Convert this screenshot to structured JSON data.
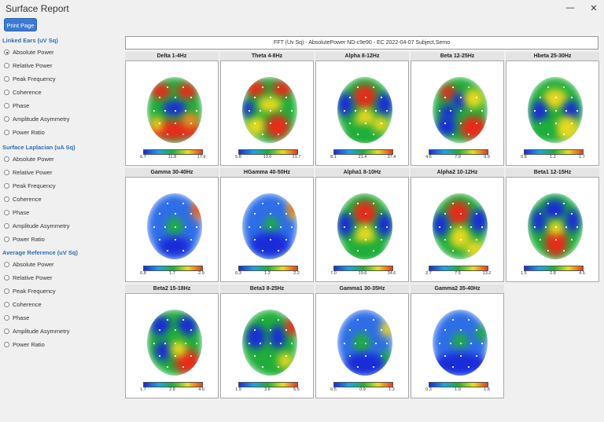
{
  "window": {
    "title": "Surface Report",
    "minimize": "—",
    "close": "✕"
  },
  "toolbar": {
    "print_label": "Print Page"
  },
  "sections": [
    {
      "title": "Linked Ears (uV Sq)",
      "options": [
        "Absolute Power",
        "Relative Power",
        "Peak Frequency",
        "Coherence",
        "Phase",
        "Amplitude Asymmetry",
        "Power Ratio"
      ],
      "selected": 0
    },
    {
      "title": "Surface Laplacian (uA Sq)",
      "options": [
        "Absolute Power",
        "Relative Power",
        "Peak Frequency",
        "Coherence",
        "Phase",
        "Amplitude Asymmetry",
        "Power Ratio"
      ],
      "selected": -1
    },
    {
      "title": "Average Reference (uV Sq)",
      "options": [
        "Absolute Power",
        "Relative Power",
        "Peak Frequency",
        "Coherence",
        "Phase",
        "Amplitude Asymmetry",
        "Power Ratio"
      ],
      "selected": -1
    }
  ],
  "header": "FFT (Uv Sq) - AbsolutePower  ND-c9e90  - EC  2022-04-07  Subject,Semo",
  "panels": [
    {
      "title": "Delta 1-4Hz",
      "scale": [
        "6.7",
        "11.8",
        "17.9"
      ],
      "pattern": "delta"
    },
    {
      "title": "Theta 4-8Hz",
      "scale": [
        "5.8",
        "13.0",
        "21.7"
      ],
      "pattern": "theta"
    },
    {
      "title": "Alpha 8-12Hz",
      "scale": [
        "8.1",
        "21.4",
        "37.4"
      ],
      "pattern": "alpha"
    },
    {
      "title": "Beta 12-25Hz",
      "scale": [
        "4.6",
        "7.0",
        "9.9"
      ],
      "pattern": "beta"
    },
    {
      "title": "Hbeta 25-30Hz",
      "scale": [
        "0.8",
        "1.2",
        "1.7"
      ],
      "pattern": "hbeta"
    },
    {
      "title": "Gamma 30-40Hz",
      "scale": [
        "0.8",
        "1.7",
        "2.9"
      ],
      "pattern": "gamma"
    },
    {
      "title": "HGamma 40-50Hz",
      "scale": [
        "0.3",
        "1.2",
        "2.2"
      ],
      "pattern": "hgamma"
    },
    {
      "title": "Alpha1 8-10Hz",
      "scale": [
        "7.0",
        "19.6",
        "34.6"
      ],
      "pattern": "alpha1"
    },
    {
      "title": "Alpha2 10-12Hz",
      "scale": [
        "2.7",
        "7.5",
        "13.2"
      ],
      "pattern": "alpha2"
    },
    {
      "title": "Beta1 12-15Hz",
      "scale": [
        "1.5",
        "2.8",
        "4.5"
      ],
      "pattern": "beta1"
    },
    {
      "title": "Beta2 15-18Hz",
      "scale": [
        "1.7",
        "2.8",
        "4.0"
      ],
      "pattern": "beta2"
    },
    {
      "title": "Beta3 8-25Hz",
      "scale": [
        "1.9",
        "3.6",
        "5.5"
      ],
      "pattern": "beta3"
    },
    {
      "title": "Gamma1 30-35Hz",
      "scale": [
        "0.5",
        "0.9",
        "1.3"
      ],
      "pattern": "gamma1"
    },
    {
      "title": "Gamma2 35-40Hz",
      "scale": [
        "0.3",
        "1.0",
        "1.8"
      ],
      "pattern": "gamma2"
    }
  ],
  "colors": {
    "accent": "#2f6db5",
    "button": "#3a7bd5"
  }
}
